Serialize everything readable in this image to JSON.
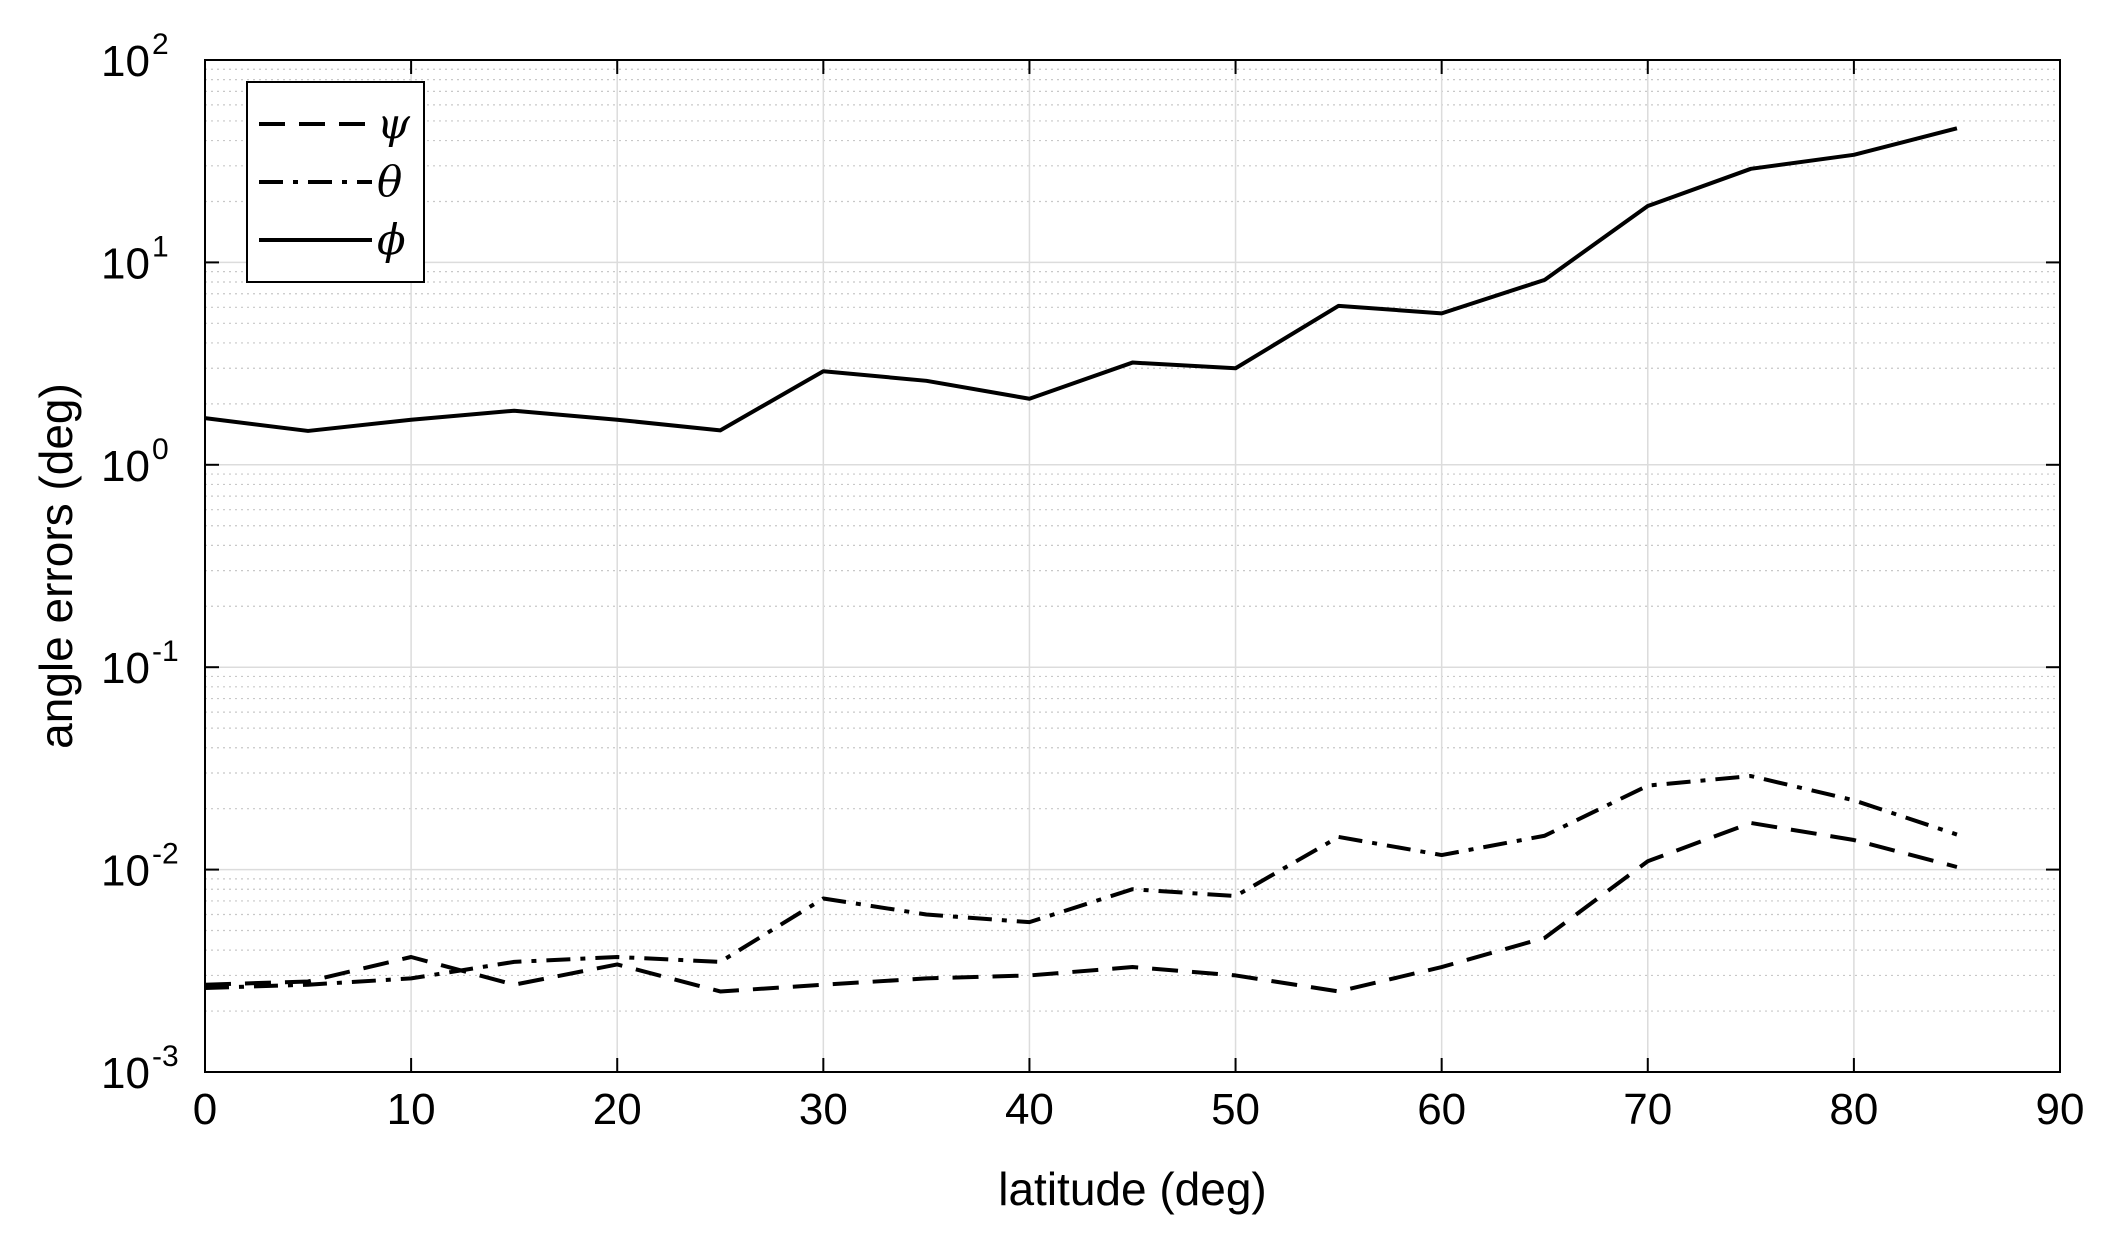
{
  "chart_data": {
    "type": "line",
    "xlabel": "latitude (deg)",
    "ylabel": "angle errors (deg)",
    "xlim": [
      0,
      90
    ],
    "ylim": [
      0.001,
      100
    ],
    "yscale": "log",
    "grid": true,
    "minor_grid": true,
    "legend_position": "top-left",
    "x_ticks": [
      "0",
      "10",
      "20",
      "30",
      "40",
      "50",
      "60",
      "70",
      "80",
      "90"
    ],
    "y_ticks": [
      {
        "base": "10",
        "exp": "-3"
      },
      {
        "base": "10",
        "exp": "-2"
      },
      {
        "base": "10",
        "exp": "-1"
      },
      {
        "base": "10",
        "exp": "0"
      },
      {
        "base": "10",
        "exp": "1"
      },
      {
        "base": "10",
        "exp": "2"
      }
    ],
    "x": [
      0,
      5,
      10,
      15,
      20,
      25,
      30,
      35,
      40,
      45,
      50,
      55,
      60,
      65,
      70,
      75,
      80,
      85
    ],
    "series": [
      {
        "name": "ψ",
        "style": "dashed",
        "color": "#000000",
        "values": [
          0.0027,
          0.0028,
          0.0037,
          0.0027,
          0.0034,
          0.0025,
          0.0027,
          0.0029,
          0.003,
          0.0033,
          0.003,
          0.0025,
          0.0033,
          0.0046,
          0.011,
          0.017,
          0.014,
          0.0103
        ]
      },
      {
        "name": "θ",
        "style": "dashdot",
        "color": "#000000",
        "values": [
          0.0026,
          0.0027,
          0.0029,
          0.0035,
          0.0037,
          0.0035,
          0.0072,
          0.006,
          0.0055,
          0.008,
          0.0074,
          0.0145,
          0.0118,
          0.0147,
          0.026,
          0.029,
          0.022,
          0.0149
        ]
      },
      {
        "name": "ϕ",
        "style": "solid",
        "color": "#000000",
        "values": [
          1.7,
          1.47,
          1.67,
          1.85,
          1.67,
          1.48,
          2.9,
          2.6,
          2.12,
          3.2,
          3.0,
          6.1,
          5.6,
          8.2,
          19.0,
          29.0,
          34.0,
          46.0
        ]
      }
    ]
  }
}
